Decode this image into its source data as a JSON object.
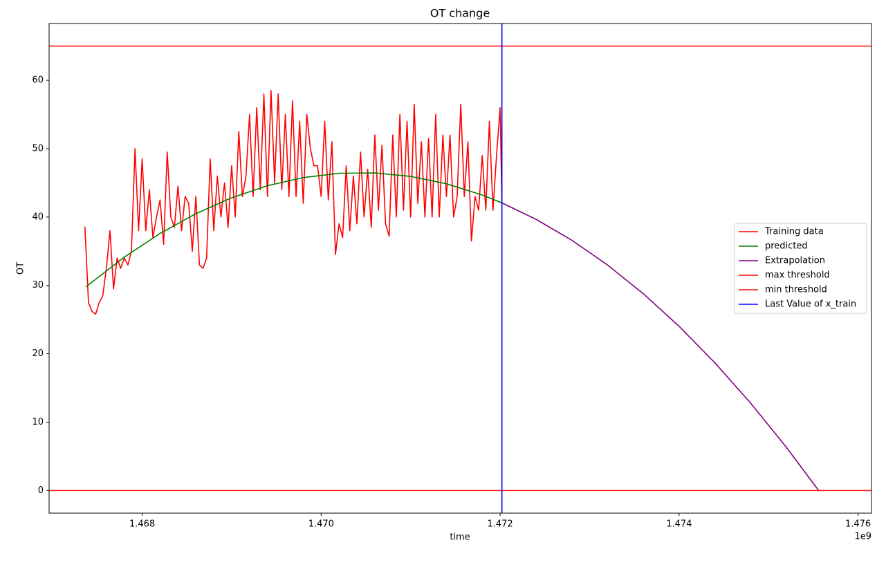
{
  "chart_data": {
    "type": "line",
    "title": "OT change",
    "xlabel": "time",
    "ylabel": "OT",
    "x_offset_text": "1e9",
    "xlim": [
      1.46696,
      1.47615
    ],
    "ylim": [
      -3.3,
      68.3
    ],
    "xticks": [
      1.468,
      {
        "value": 1.47,
        "label": "1.470"
      },
      1.472,
      1.474,
      1.476
    ],
    "yticks": [
      0,
      10,
      20,
      30,
      40,
      50,
      60
    ],
    "legend": "center-right",
    "series": [
      {
        "name": "Training data",
        "color": "#ff0000",
        "kind": "line",
        "x": [
          1.46736,
          1.4674,
          1.46744,
          1.46748,
          1.46752,
          1.46756,
          1.4676,
          1.46764,
          1.46768,
          1.46772,
          1.46776,
          1.4678,
          1.46784,
          1.46788,
          1.46792,
          1.46796,
          1.468,
          1.46804,
          1.46808,
          1.46812,
          1.46816,
          1.4682,
          1.46824,
          1.46828,
          1.46832,
          1.46836,
          1.4684,
          1.46844,
          1.46848,
          1.46852,
          1.46856,
          1.4686,
          1.46864,
          1.46868,
          1.46872,
          1.46876,
          1.4688,
          1.46884,
          1.46888,
          1.46892,
          1.46896,
          1.469,
          1.46904,
          1.46908,
          1.46912,
          1.46916,
          1.4692,
          1.46924,
          1.46928,
          1.46932,
          1.46936,
          1.4694,
          1.46944,
          1.46948,
          1.46952,
          1.46956,
          1.4696,
          1.46964,
          1.46968,
          1.46972,
          1.46976,
          1.4698,
          1.46984,
          1.46988,
          1.46992,
          1.46996,
          1.47,
          1.47004,
          1.47008,
          1.47012,
          1.47016,
          1.4702,
          1.47024,
          1.47028,
          1.47032,
          1.47036,
          1.4704,
          1.47044,
          1.47048,
          1.47052,
          1.47056,
          1.4706,
          1.47064,
          1.47068,
          1.47072,
          1.47076,
          1.4708,
          1.47084,
          1.47088,
          1.47092,
          1.47096,
          1.471,
          1.47104,
          1.47108,
          1.47112,
          1.47116,
          1.4712,
          1.47124,
          1.47128,
          1.47132,
          1.47136,
          1.4714,
          1.47144,
          1.47148,
          1.47152,
          1.47156,
          1.4716,
          1.47164,
          1.47168,
          1.47172,
          1.47176,
          1.4718,
          1.47184,
          1.47188,
          1.47192,
          1.47196,
          1.472,
          1.47202
        ],
        "values": [
          38.6,
          27.5,
          26.2,
          25.8,
          27.5,
          28.5,
          32.5,
          38,
          29.5,
          34,
          32.5,
          34,
          33,
          35,
          50,
          38,
          48.5,
          38,
          44,
          37,
          40,
          42.5,
          36,
          49.5,
          40,
          38.5,
          44.5,
          38,
          43,
          42,
          35,
          43,
          33,
          32.5,
          34,
          48.5,
          38,
          46,
          40,
          45,
          38.5,
          47.5,
          40,
          52.5,
          43,
          46,
          55,
          43,
          56,
          44,
          58,
          43,
          58.5,
          45,
          58,
          44,
          55,
          43,
          57,
          43,
          54,
          42,
          55,
          50,
          47.5,
          47.5,
          43,
          54,
          42.5,
          51,
          34.5,
          39,
          37,
          47.5,
          38,
          46,
          39,
          49.5,
          40,
          47,
          38.5,
          52,
          41,
          50.5,
          39,
          37.2,
          52,
          40,
          55,
          41,
          54,
          40,
          56.5,
          42,
          51,
          40,
          51.5,
          40,
          55,
          40,
          52,
          43,
          52,
          40,
          43,
          56.5,
          43,
          51,
          36.5,
          43,
          41,
          49,
          41,
          54,
          41,
          49,
          56,
          42
        ]
      },
      {
        "name": "predicted",
        "color": "#008000",
        "kind": "line",
        "x": [
          1.46737,
          1.4678,
          1.4682,
          1.4686,
          1.469,
          1.4694,
          1.4698,
          1.4702,
          1.4706,
          1.471,
          1.4714,
          1.4718,
          1.47202
        ],
        "values": [
          29.78,
          34.14,
          37.6,
          40.49,
          42.82,
          44.58,
          45.77,
          46.4,
          46.45,
          45.94,
          44.87,
          43.22,
          42.07
        ]
      },
      {
        "name": "Extrapolation",
        "color": "#800080",
        "kind": "line",
        "x": [
          1.47202,
          1.4724,
          1.4728,
          1.4732,
          1.4736,
          1.474,
          1.4744,
          1.4748,
          1.4752,
          1.47556
        ],
        "values": [
          42.07,
          39.68,
          36.62,
          32.99,
          28.79,
          24.02,
          18.68,
          12.78,
          6.31,
          0
        ]
      },
      {
        "name": "max threshold",
        "color": "#ff0000",
        "kind": "hline",
        "value": 65
      },
      {
        "name": "min threshold",
        "color": "#ff0000",
        "kind": "hline",
        "value": 0
      },
      {
        "name": "Last Value of x_train",
        "color": "#0000ff",
        "kind": "vline",
        "value": 1.47202
      }
    ]
  }
}
